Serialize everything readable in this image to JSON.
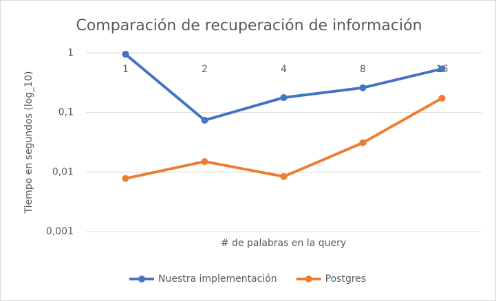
{
  "chart_data": {
    "type": "line",
    "title": "Comparación de recuperación de información",
    "x_label": "# de palabras en la query",
    "y_label": "Tiempo en segundos (log_10)",
    "categories": [
      "1",
      "2",
      "4",
      "8",
      "16"
    ],
    "series": [
      {
        "name": "Nuestra implementación",
        "color": "#4472c4",
        "values": [
          0.95,
          0.074,
          0.178,
          0.26,
          0.54
        ]
      },
      {
        "name": "Postgres",
        "color": "#ed7d31",
        "values": [
          0.0078,
          0.015,
          0.0084,
          0.031,
          0.174
        ]
      }
    ],
    "ylim": [
      0.001,
      1
    ],
    "yticks": [
      {
        "value": 0.001,
        "label": "0,001"
      },
      {
        "value": 0.01,
        "label": "0,01"
      },
      {
        "value": 0.1,
        "label": "0,1"
      },
      1
    ],
    "log_scale": true,
    "grid": true,
    "legend": "bottom"
  }
}
